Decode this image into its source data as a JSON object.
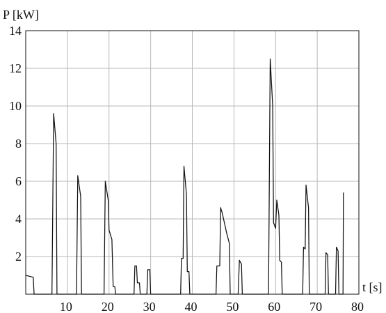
{
  "chart_data": {
    "type": "line",
    "title": "",
    "xlabel": "t [s]",
    "ylabel": "P [kW]",
    "xlim": [
      0,
      80
    ],
    "ylim": [
      0,
      14
    ],
    "grid": true,
    "x_ticks": [
      10,
      20,
      30,
      40,
      50,
      60,
      70,
      80
    ],
    "y_ticks": [
      2,
      4,
      6,
      8,
      10,
      12,
      14
    ],
    "x_tick_labels": [
      "10",
      "20",
      "30",
      "40",
      "50",
      "60",
      "70",
      "80"
    ],
    "y_tick_labels": [
      "2",
      "4",
      "6",
      "8",
      "10",
      "12",
      "14"
    ],
    "colors": {
      "line": "#111111",
      "grid": "#b8b8b8",
      "axis": "#111111"
    },
    "series": [
      {
        "values": [
          [
            0.0,
            1.0
          ],
          [
            1.8,
            0.9
          ],
          [
            2.0,
            0.0
          ],
          [
            6.3,
            0.0
          ],
          [
            6.7,
            9.6
          ],
          [
            7.3,
            8.0
          ],
          [
            7.5,
            0.0
          ],
          [
            12.2,
            0.0
          ],
          [
            12.5,
            6.3
          ],
          [
            13.2,
            5.2
          ],
          [
            13.4,
            0.0
          ],
          [
            18.8,
            0.0
          ],
          [
            19.1,
            6.0
          ],
          [
            19.8,
            5.0
          ],
          [
            20.0,
            3.4
          ],
          [
            20.7,
            2.9
          ],
          [
            21.0,
            0.4
          ],
          [
            21.4,
            0.4
          ],
          [
            21.6,
            0.0
          ],
          [
            26.0,
            0.0
          ],
          [
            26.2,
            1.5
          ],
          [
            26.6,
            1.5
          ],
          [
            26.8,
            0.6
          ],
          [
            27.3,
            0.6
          ],
          [
            27.5,
            0.0
          ],
          [
            29.1,
            0.0
          ],
          [
            29.3,
            1.3
          ],
          [
            29.8,
            1.3
          ],
          [
            30.0,
            0.0
          ],
          [
            37.2,
            0.0
          ],
          [
            37.4,
            1.9
          ],
          [
            37.8,
            1.9
          ],
          [
            38.0,
            6.8
          ],
          [
            38.6,
            5.3
          ],
          [
            38.8,
            1.2
          ],
          [
            39.2,
            1.2
          ],
          [
            39.4,
            0.0
          ],
          [
            45.7,
            0.0
          ],
          [
            45.9,
            1.5
          ],
          [
            46.6,
            1.5
          ],
          [
            46.8,
            4.6
          ],
          [
            47.2,
            4.3
          ],
          [
            48.3,
            3.2
          ],
          [
            48.9,
            2.7
          ],
          [
            49.1,
            0.0
          ],
          [
            51.0,
            0.0
          ],
          [
            51.3,
            1.8
          ],
          [
            51.8,
            1.6
          ],
          [
            52.0,
            0.0
          ],
          [
            58.3,
            0.0
          ],
          [
            58.7,
            12.5
          ],
          [
            59.3,
            10.0
          ],
          [
            59.5,
            3.8
          ],
          [
            60.0,
            3.5
          ],
          [
            60.3,
            5.0
          ],
          [
            60.8,
            4.2
          ],
          [
            61.0,
            1.8
          ],
          [
            61.4,
            1.7
          ],
          [
            61.6,
            0.0
          ],
          [
            66.5,
            0.0
          ],
          [
            66.7,
            2.5
          ],
          [
            67.1,
            2.4
          ],
          [
            67.3,
            5.8
          ],
          [
            67.9,
            4.6
          ],
          [
            68.1,
            0.0
          ],
          [
            71.9,
            0.0
          ],
          [
            72.1,
            2.2
          ],
          [
            72.5,
            2.1
          ],
          [
            72.7,
            0.0
          ],
          [
            74.4,
            0.0
          ],
          [
            74.6,
            2.5
          ],
          [
            75.0,
            2.3
          ],
          [
            75.2,
            0.0
          ],
          [
            76.2,
            0.0
          ],
          [
            76.3,
            5.4
          ]
        ]
      }
    ]
  }
}
